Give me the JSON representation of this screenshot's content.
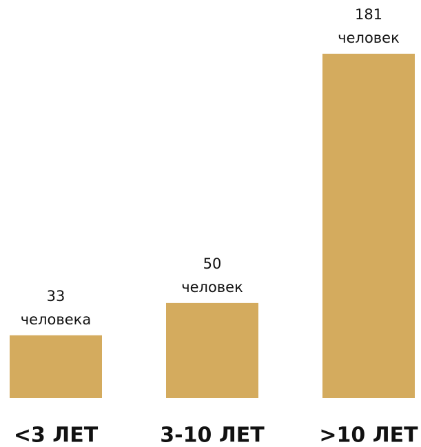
{
  "chart_data": {
    "type": "bar",
    "categories": [
      "<3 ЛЕТ",
      "3-10 ЛЕТ",
      ">10 ЛЕТ"
    ],
    "values": [
      33,
      50,
      181
    ],
    "value_units": [
      "человека",
      "человек",
      "человек"
    ],
    "color": "#d4ab5e"
  }
}
